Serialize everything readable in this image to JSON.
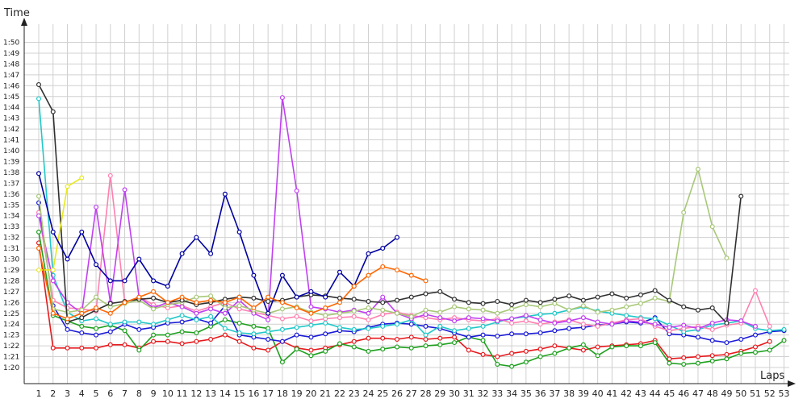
{
  "chart_data": {
    "type": "line",
    "xlabel": "Laps",
    "ylabel": "Time",
    "x_categories": [
      "1",
      "2",
      "3",
      "4",
      "5",
      "6",
      "7",
      "8",
      "9",
      "10",
      "11",
      "12",
      "13",
      "14",
      "15",
      "16",
      "17",
      "18",
      "19",
      "20",
      "21",
      "22",
      "23",
      "24",
      "25",
      "26",
      "27",
      "28",
      "29",
      "30",
      "31",
      "32",
      "33",
      "34",
      "35",
      "36",
      "37",
      "38",
      "39",
      "40",
      "41",
      "42",
      "43",
      "44",
      "45",
      "46",
      "47",
      "48",
      "49",
      "50",
      "51",
      "52",
      "53"
    ],
    "y_ticks": [
      "1:20",
      "1:21",
      "1:22",
      "1:23",
      "1:24",
      "1:25",
      "1:26",
      "1:27",
      "1:28",
      "1:29",
      "1:30",
      "1:31",
      "1:32",
      "1:33",
      "1:34",
      "1:35",
      "1:36",
      "1:37",
      "1:38",
      "1:39",
      "1:40",
      "1:41",
      "1:42",
      "1:43",
      "1:44",
      "1:45",
      "1:46",
      "1:47",
      "1:48",
      "1:49",
      "1:50"
    ],
    "y_unit": "seconds",
    "ylim": [
      79,
      111
    ],
    "grid": true,
    "series": [
      {
        "color": "#e6191c",
        "values": [
          91.5,
          81.8,
          81.8,
          81.8,
          81.8,
          82.1,
          82.1,
          81.8,
          82.4,
          82.4,
          82.2,
          82.4,
          82.6,
          83.0,
          82.4,
          81.8,
          81.6,
          82.4,
          81.8,
          81.6,
          81.8,
          82.1,
          82.4,
          82.7,
          82.7,
          82.6,
          82.8,
          82.6,
          82.7,
          82.8,
          81.6,
          81.2,
          81.0,
          81.3,
          81.5,
          81.7,
          82.0,
          81.8,
          81.6,
          81.9,
          82.0,
          82.1,
          82.2,
          82.5,
          80.8,
          80.9,
          81.0,
          81.1,
          81.2,
          81.5,
          81.9,
          82.4,
          null
        ]
      },
      {
        "color": "#1ea01e",
        "values": [
          92.5,
          84.8,
          84.3,
          83.8,
          83.6,
          83.9,
          83.4,
          81.6,
          83.0,
          83.0,
          83.3,
          83.2,
          83.8,
          84.4,
          84.1,
          83.8,
          83.6,
          80.5,
          81.7,
          81.1,
          81.5,
          82.2,
          81.9,
          81.5,
          81.7,
          81.9,
          81.8,
          82.0,
          82.1,
          82.3,
          82.8,
          82.5,
          80.3,
          80.1,
          80.5,
          81.0,
          81.3,
          81.8,
          82.1,
          81.1,
          81.9,
          82.0,
          82.0,
          82.3,
          80.4,
          80.3,
          80.4,
          80.6,
          80.8,
          81.3,
          81.4,
          81.6,
          82.5
        ]
      },
      {
        "color": "#1a1ad8",
        "values": [
          95.2,
          85.7,
          83.5,
          83.2,
          83.0,
          83.3,
          84.0,
          83.5,
          83.7,
          84.1,
          84.2,
          84.5,
          84.1,
          85.7,
          83.0,
          82.8,
          82.6,
          82.4,
          83.0,
          82.8,
          83.1,
          83.4,
          83.3,
          83.7,
          84.0,
          84.1,
          84.0,
          83.8,
          83.6,
          83.2,
          82.8,
          83.0,
          82.9,
          83.1,
          83.1,
          83.2,
          83.4,
          83.6,
          83.7,
          83.9,
          84.0,
          84.2,
          84.1,
          84.6,
          83.1,
          83.0,
          82.8,
          82.5,
          82.3,
          82.6,
          83.0,
          83.3,
          83.4
        ]
      },
      {
        "color": "#21c8c8",
        "values": [
          104.8,
          88.5,
          85.1,
          84.3,
          84.5,
          84.0,
          84.2,
          84.2,
          84.0,
          84.4,
          84.8,
          84.4,
          84.7,
          83.6,
          83.2,
          83.1,
          83.3,
          83.5,
          83.7,
          83.9,
          84.1,
          83.7,
          83.5,
          83.6,
          83.8,
          84.0,
          84.4,
          83.0,
          83.8,
          83.4,
          83.6,
          83.8,
          84.2,
          84.5,
          84.7,
          84.9,
          85.0,
          85.3,
          85.6,
          85.2,
          85.0,
          84.8,
          84.6,
          84.5,
          83.9,
          83.3,
          83.5,
          83.9,
          84.1,
          84.3,
          83.6,
          83.4,
          83.5
        ]
      },
      {
        "color": "#ff80b0",
        "values": [
          94.3,
          86.2,
          85.5,
          85.4,
          85.2,
          97.7,
          86.0,
          86.5,
          85.8,
          85.5,
          85.7,
          85.2,
          85.6,
          86.0,
          85.4,
          85.1,
          84.8,
          84.5,
          84.7,
          84.3,
          84.5,
          84.6,
          84.7,
          84.4,
          84.9,
          85.1,
          84.8,
          84.6,
          84.4,
          84.6,
          84.4,
          84.3,
          84.5,
          84.1,
          84.3,
          84.0,
          84.2,
          84.4,
          84.0,
          83.8,
          84.1,
          84.4,
          84.5,
          83.8,
          83.4,
          83.6,
          83.8,
          83.5,
          83.9,
          84.1,
          87.1,
          83.8,
          null
        ]
      },
      {
        "color": "#c040f0",
        "values": [
          94.0,
          88.0,
          86.0,
          85.0,
          94.8,
          86.0,
          96.4,
          86.5,
          85.5,
          86.0,
          85.6,
          85.0,
          85.4,
          85.0,
          86.2,
          85.0,
          84.4,
          104.9,
          96.3,
          85.6,
          85.4,
          85.1,
          85.3,
          85.0,
          86.5,
          85.0,
          84.5,
          84.9,
          84.6,
          84.3,
          84.6,
          84.5,
          84.3,
          84.5,
          84.8,
          84.4,
          84.1,
          84.3,
          84.6,
          84.2,
          84.0,
          84.3,
          84.2,
          84.0,
          83.7,
          83.9,
          83.6,
          84.1,
          84.4,
          84.3,
          83.8,
          null,
          null
        ]
      },
      {
        "color": "#a8c878",
        "values": [
          95.8,
          85.4,
          85.1,
          85.3,
          86.5,
          85.6,
          85.9,
          86.2,
          85.4,
          85.8,
          86.0,
          86.5,
          86.6,
          85.5,
          85.7,
          85.3,
          85.0,
          85.4,
          85.6,
          85.1,
          84.8,
          85.0,
          85.2,
          85.5,
          85.3,
          85.0,
          84.7,
          85.3,
          85.1,
          85.6,
          85.4,
          85.3,
          85.0,
          85.4,
          85.8,
          85.6,
          85.9,
          85.3,
          85.7,
          85.1,
          85.3,
          85.6,
          85.9,
          86.4,
          86.1,
          94.3,
          98.3,
          93.0,
          90.1,
          null,
          null,
          null,
          null
        ]
      },
      {
        "color": "#303030",
        "values": [
          106.1,
          103.6,
          84.2,
          84.6,
          85.3,
          85.9,
          86.1,
          86.3,
          86.4,
          86.0,
          86.2,
          85.8,
          86.0,
          86.3,
          86.5,
          86.4,
          86.1,
          86.2,
          86.5,
          86.7,
          86.6,
          86.4,
          86.3,
          86.1,
          86.0,
          86.2,
          86.5,
          86.8,
          87.0,
          86.3,
          86.0,
          85.9,
          86.1,
          85.8,
          86.2,
          86.0,
          86.3,
          86.6,
          86.2,
          86.5,
          86.8,
          86.4,
          86.7,
          87.1,
          86.2,
          85.6,
          85.3,
          85.5,
          84.1,
          95.8,
          null,
          null,
          null
        ]
      },
      {
        "color": "#e8e820",
        "values": [
          89.0,
          89.0,
          96.7,
          97.5,
          null,
          null,
          null,
          null,
          null,
          null,
          null,
          null,
          null,
          null,
          null,
          null,
          null,
          null,
          null,
          null,
          null,
          null,
          null,
          null,
          null,
          null,
          null,
          null,
          null,
          null,
          null,
          null,
          null,
          null,
          null,
          null,
          null,
          null,
          null,
          null,
          null,
          null,
          null,
          null,
          null,
          null,
          null,
          null,
          null,
          null,
          null,
          null,
          null
        ]
      },
      {
        "color": "#0000a0",
        "values": [
          97.9,
          92.5,
          90.0,
          92.5,
          89.5,
          88.0,
          88.0,
          90.0,
          88.0,
          87.5,
          90.5,
          92.0,
          90.5,
          96.0,
          92.5,
          88.5,
          85.0,
          88.5,
          86.5,
          87.0,
          86.5,
          88.8,
          87.5,
          90.5,
          91.0,
          92.0,
          null,
          null,
          null,
          null,
          null,
          null,
          null,
          null,
          null,
          null,
          null,
          null,
          null,
          null,
          null,
          null,
          null,
          null,
          null,
          null,
          null,
          null,
          null,
          null,
          null,
          null,
          null
        ]
      },
      {
        "color": "#ff6600",
        "values": [
          91.0,
          85.0,
          84.5,
          85.0,
          85.5,
          85.0,
          86.0,
          86.5,
          87.0,
          86.0,
          86.5,
          86.0,
          86.2,
          86.0,
          86.5,
          85.5,
          86.5,
          86.0,
          85.5,
          85.0,
          85.5,
          86.0,
          87.5,
          88.5,
          89.3,
          89.0,
          88.5,
          88.0,
          null,
          null,
          null,
          null,
          null,
          null,
          null,
          null,
          null,
          null,
          null,
          null,
          null,
          null,
          null,
          null,
          null,
          null,
          null,
          null,
          null,
          null,
          null,
          null,
          null
        ]
      }
    ]
  }
}
